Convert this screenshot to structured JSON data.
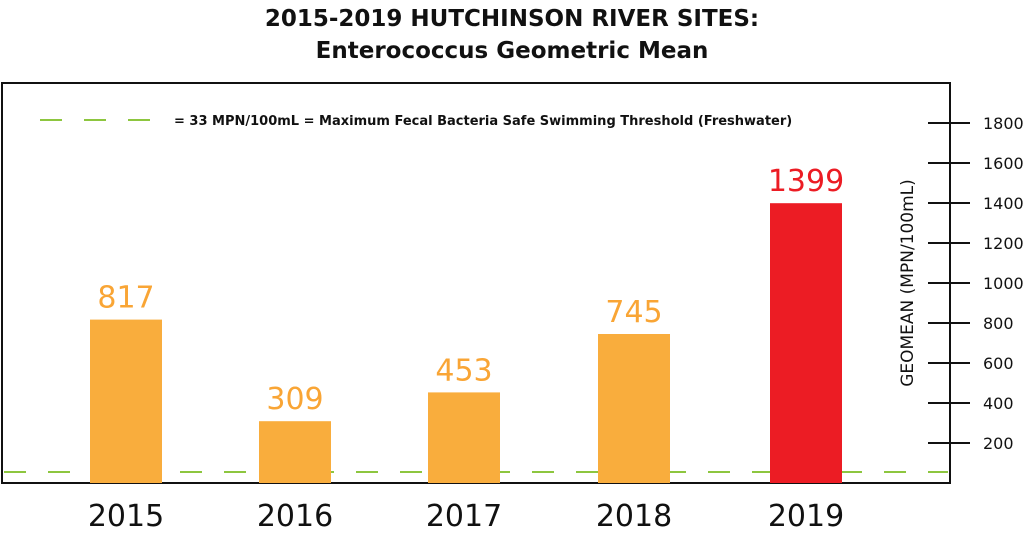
{
  "chart_data": {
    "type": "bar",
    "title": "2015-2019 HUTCHINSON RIVER SITES:",
    "subtitle": "Enterococcus Geometric Mean",
    "categories": [
      "2015",
      "2016",
      "2017",
      "2018",
      "2019"
    ],
    "values": [
      817,
      309,
      453,
      745,
      1399
    ],
    "bar_colors": [
      "#f9ad3d",
      "#f9ad3d",
      "#f9ad3d",
      "#f9ad3d",
      "#ec1c24"
    ],
    "label_colors": [
      "#f9a535",
      "#f9a535",
      "#f9a535",
      "#f9a535",
      "#ec1c24"
    ],
    "ylabel": "GEOMEAN (MPN/100mL)",
    "ylim": [
      0,
      1800
    ],
    "yticks": [
      200,
      400,
      600,
      800,
      1000,
      1200,
      1400,
      1600,
      1800
    ],
    "y_axis_side": "right",
    "threshold": {
      "value": 33,
      "label": "= 33 MPN/100mL = Maximum Fecal Bacteria Safe Swimming Threshold (Freshwater)",
      "color": "#8dc63f"
    }
  }
}
